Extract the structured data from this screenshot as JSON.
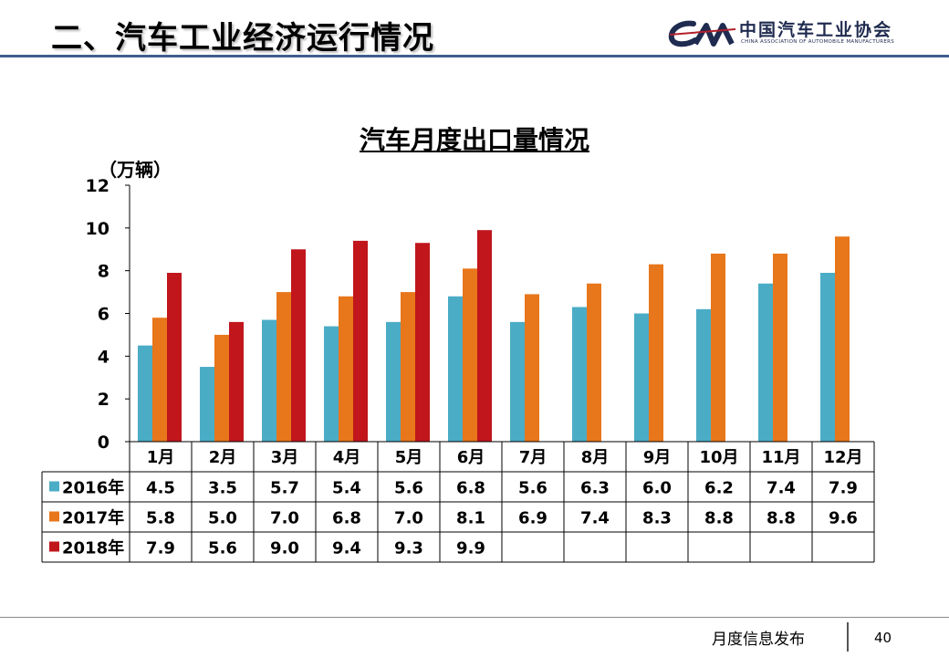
{
  "slide": {
    "title": "二、汽车工业经济运行情况",
    "logo_cn": "中国汽车工业协会",
    "logo_en": "CHINA ASSOCIATION OF AUTOMOBILE MANUFACTURERS",
    "logo_mark": "CAM",
    "footer": "月度信息发布",
    "page_number": "40"
  },
  "chart_data": {
    "type": "bar",
    "title": "汽车月度出口量情况",
    "unit": "（万辆）",
    "categories": [
      "1月",
      "2月",
      "3月",
      "4月",
      "5月",
      "6月",
      "7月",
      "8月",
      "9月",
      "10月",
      "11月",
      "12月"
    ],
    "series": [
      {
        "name": "2016年",
        "color": "#4bacc6",
        "values": [
          4.5,
          3.5,
          5.7,
          5.4,
          5.6,
          6.8,
          5.6,
          6.3,
          6.0,
          6.2,
          7.4,
          7.9
        ],
        "labels": [
          "4.5",
          "3.5",
          "5.7",
          "5.4",
          "5.6",
          "6.8",
          "5.6",
          "6.3",
          "6.0",
          "6.2",
          "7.4",
          "7.9"
        ]
      },
      {
        "name": "2017年",
        "color": "#e8761b",
        "values": [
          5.8,
          5.0,
          7.0,
          6.8,
          7.0,
          8.1,
          6.9,
          7.4,
          8.3,
          8.8,
          8.8,
          9.6
        ],
        "labels": [
          "5.8",
          "5.0",
          "7.0",
          "6.8",
          "7.0",
          "8.1",
          "6.9",
          "7.4",
          "8.3",
          "8.8",
          "8.8",
          "9.6"
        ]
      },
      {
        "name": "2018年",
        "color": "#c0161c",
        "values": [
          7.9,
          5.6,
          9.0,
          9.4,
          9.3,
          9.9,
          null,
          null,
          null,
          null,
          null,
          null
        ],
        "labels": [
          "7.9",
          "5.6",
          "9.0",
          "9.4",
          "9.3",
          "9.9",
          "",
          "",
          "",
          "",
          "",
          ""
        ]
      }
    ],
    "ylim": [
      0,
      12
    ],
    "yticks": [
      "0",
      "2",
      "4",
      "6",
      "8",
      "10",
      "12"
    ],
    "grid": false,
    "legend": "data-table"
  }
}
